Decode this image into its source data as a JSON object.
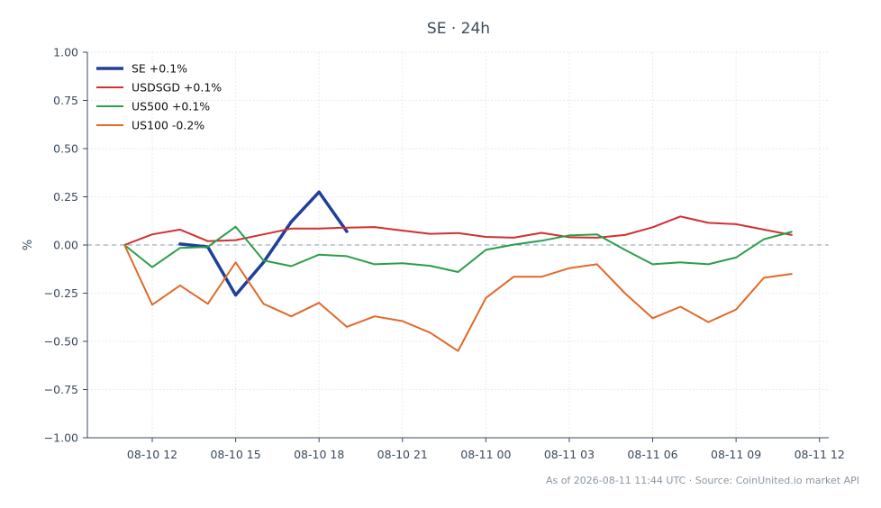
{
  "chart_data": {
    "type": "line",
    "title": "SE · 24h",
    "xlabel": "",
    "ylabel": "%",
    "x_ticks": [
      "08-10 12",
      "08-10 15",
      "08-10 18",
      "08-10 21",
      "08-11 00",
      "08-11 03",
      "08-11 06",
      "08-11 09",
      "08-11 12"
    ],
    "xlim": [
      "2026-08-10 09:40",
      "2026-08-11 12:20"
    ],
    "ylim": [
      -1.0,
      1.0
    ],
    "y_ticks": [
      "1.00",
      "0.75",
      "0.50",
      "0.25",
      "0.00",
      "−0.25",
      "−0.50",
      "−0.75",
      "−1.00"
    ],
    "grid": true,
    "zero_line": true,
    "legend_position": "top-left",
    "series": [
      {
        "name": "SE +0.1%",
        "color": "#1f3f99",
        "x": [
          "2026-08-10 13:00",
          "2026-08-10 14:00",
          "2026-08-10 15:00",
          "2026-08-10 16:00",
          "2026-08-10 17:00",
          "2026-08-10 18:00",
          "2026-08-10 19:00"
        ],
        "values": [
          0.005,
          -0.01,
          -0.26,
          -0.09,
          0.12,
          0.275,
          0.07
        ]
      },
      {
        "name": "USDSGD +0.1%",
        "color": "#d03030",
        "x": [
          "2026-08-10 11:00",
          "2026-08-10 12:00",
          "2026-08-10 13:00",
          "2026-08-10 14:00",
          "2026-08-10 15:00",
          "2026-08-10 16:00",
          "2026-08-10 17:00",
          "2026-08-10 18:00",
          "2026-08-10 19:00",
          "2026-08-10 20:00",
          "2026-08-10 21:00",
          "2026-08-10 22:00",
          "2026-08-10 23:00",
          "2026-08-11 00:00",
          "2026-08-11 01:00",
          "2026-08-11 02:00",
          "2026-08-11 03:00",
          "2026-08-11 04:00",
          "2026-08-11 05:00",
          "2026-08-11 06:00",
          "2026-08-11 07:00",
          "2026-08-11 08:00",
          "2026-08-11 09:00",
          "2026-08-11 10:00",
          "2026-08-11 11:00"
        ],
        "values": [
          0.0,
          0.055,
          0.08,
          0.02,
          0.025,
          0.055,
          0.085,
          0.085,
          0.09,
          0.093,
          0.075,
          0.058,
          0.062,
          0.042,
          0.038,
          0.063,
          0.04,
          0.038,
          0.052,
          0.092,
          0.148,
          0.115,
          0.108,
          0.08,
          0.052
        ]
      },
      {
        "name": "US500 +0.1%",
        "color": "#2a9d4a",
        "x": [
          "2026-08-10 11:00",
          "2026-08-10 12:00",
          "2026-08-10 13:00",
          "2026-08-10 14:00",
          "2026-08-10 15:00",
          "2026-08-10 16:00",
          "2026-08-10 17:00",
          "2026-08-10 18:00",
          "2026-08-10 19:00",
          "2026-08-10 20:00",
          "2026-08-10 21:00",
          "2026-08-10 22:00",
          "2026-08-10 23:00",
          "2026-08-11 00:00",
          "2026-08-11 01:00",
          "2026-08-11 02:00",
          "2026-08-11 03:00",
          "2026-08-11 04:00",
          "2026-08-11 05:00",
          "2026-08-11 06:00",
          "2026-08-11 07:00",
          "2026-08-11 08:00",
          "2026-08-11 09:00",
          "2026-08-11 10:00",
          "2026-08-11 11:00"
        ],
        "values": [
          0.0,
          -0.115,
          -0.015,
          -0.01,
          0.095,
          -0.08,
          -0.11,
          -0.05,
          -0.058,
          -0.1,
          -0.095,
          -0.108,
          -0.14,
          -0.025,
          0.002,
          0.022,
          0.05,
          0.055,
          -0.025,
          -0.1,
          -0.09,
          -0.1,
          -0.065,
          0.03,
          0.068
        ]
      },
      {
        "name": "US100 -0.2%",
        "color": "#e0692a",
        "x": [
          "2026-08-10 11:00",
          "2026-08-10 12:00",
          "2026-08-10 13:00",
          "2026-08-10 14:00",
          "2026-08-10 15:00",
          "2026-08-10 16:00",
          "2026-08-10 17:00",
          "2026-08-10 18:00",
          "2026-08-10 19:00",
          "2026-08-10 20:00",
          "2026-08-10 21:00",
          "2026-08-10 22:00",
          "2026-08-10 23:00",
          "2026-08-11 00:00",
          "2026-08-11 01:00",
          "2026-08-11 02:00",
          "2026-08-11 03:00",
          "2026-08-11 04:00",
          "2026-08-11 05:00",
          "2026-08-11 06:00",
          "2026-08-11 07:00",
          "2026-08-11 08:00",
          "2026-08-11 09:00",
          "2026-08-11 10:00",
          "2026-08-11 11:00"
        ],
        "values": [
          0.0,
          -0.31,
          -0.21,
          -0.305,
          -0.09,
          -0.305,
          -0.37,
          -0.3,
          -0.425,
          -0.37,
          -0.395,
          -0.455,
          -0.55,
          -0.275,
          -0.165,
          -0.165,
          -0.12,
          -0.1,
          -0.25,
          -0.38,
          -0.32,
          -0.4,
          -0.335,
          -0.17,
          -0.15
        ]
      }
    ]
  },
  "footer": "As of 2026-08-11 11:44 UTC · Source: CoinUnited.io market API"
}
